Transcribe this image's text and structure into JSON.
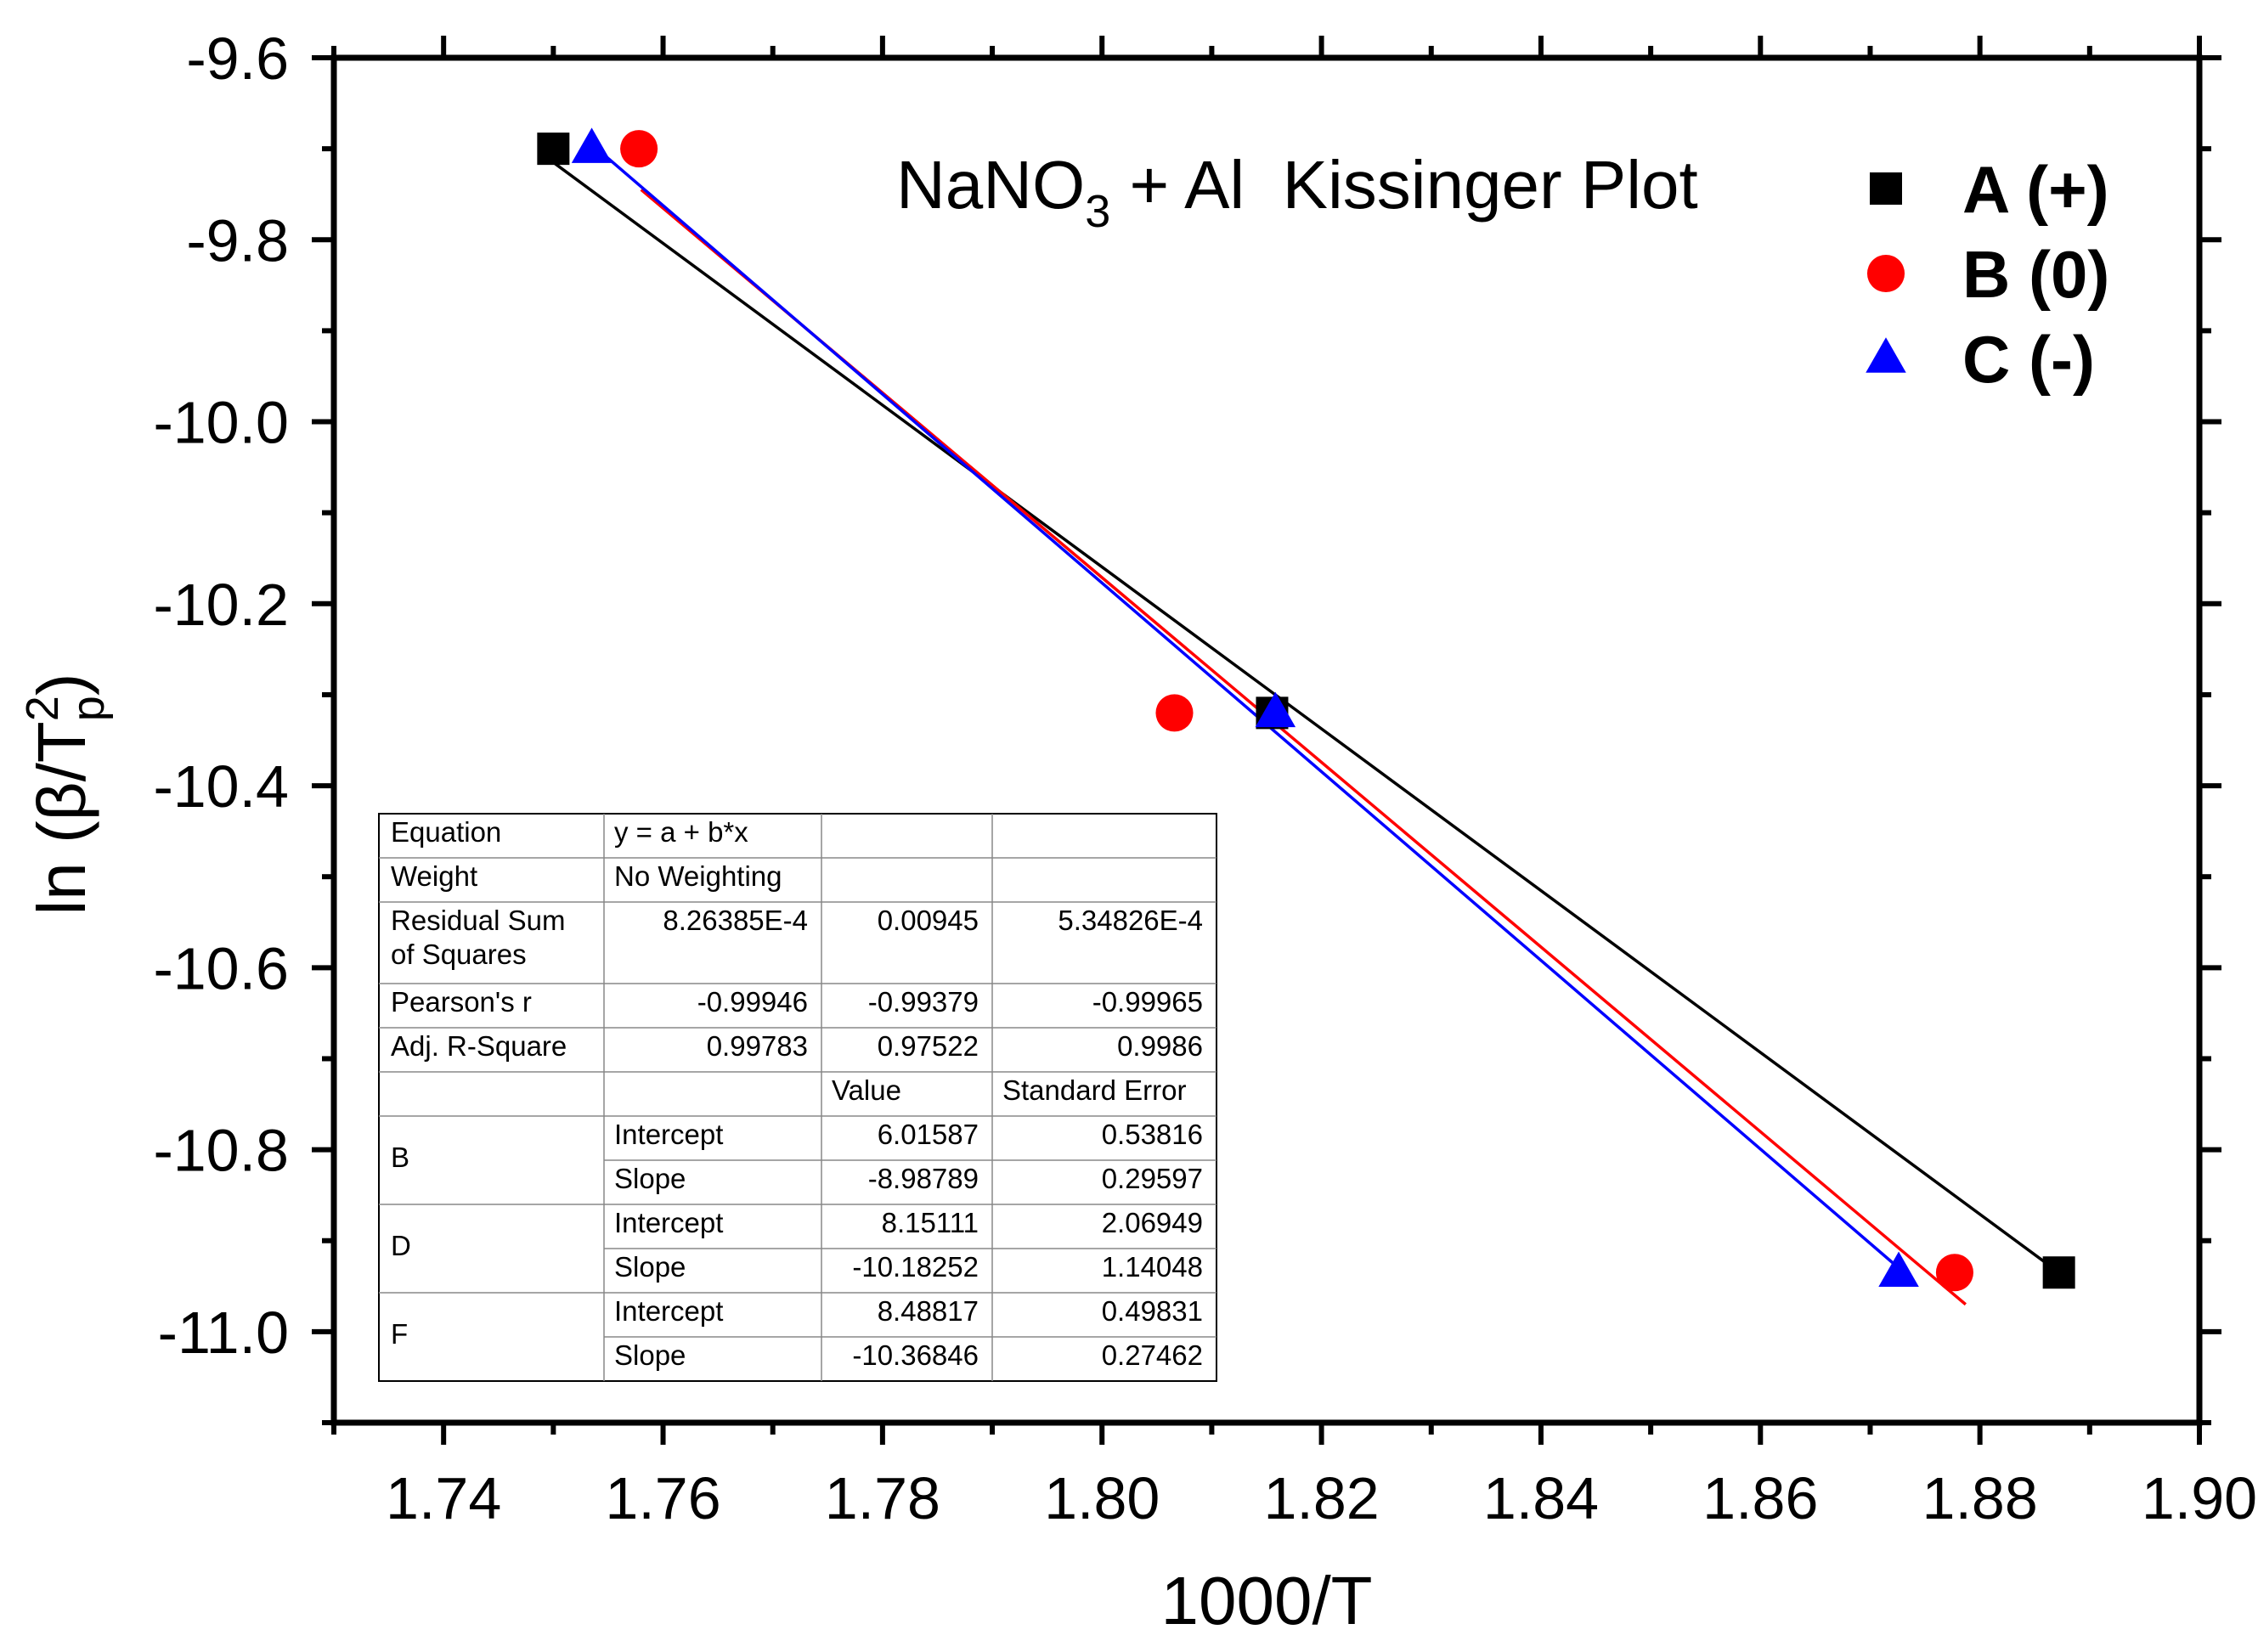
{
  "chart_data": {
    "type": "scatter",
    "title": "NaNO3 + Al  Kissinger Plot",
    "title_parts": {
      "base": "NaNO",
      "sub": "3",
      "rest": " + Al  Kissinger Plot"
    },
    "xlabel": "1000/T",
    "ylabel_parts": {
      "pre": "ln (β/T",
      "sup": "2",
      "sub": "p",
      "post": ")"
    },
    "xlim": [
      1.73,
      1.9
    ],
    "ylim": [
      -11.1,
      -9.6
    ],
    "xticks": [
      1.74,
      1.76,
      1.78,
      1.8,
      1.82,
      1.84,
      1.86,
      1.88,
      1.9
    ],
    "xtick_labels": [
      "1.74",
      "1.76",
      "1.78",
      "1.80",
      "1.82",
      "1.84",
      "1.86",
      "1.88",
      "1.90"
    ],
    "yticks": [
      -9.6,
      -9.8,
      -10.0,
      -10.2,
      -10.4,
      -10.6,
      -10.8,
      -11.0
    ],
    "ytick_labels": [
      "-9.6",
      "-9.8",
      "-10.0",
      "-10.2",
      "-10.4",
      "-10.6",
      "-10.8",
      "-11.0"
    ],
    "legend_position": "top-right",
    "series": [
      {
        "name": "A (+)",
        "marker": "square",
        "color": "#000000",
        "x": [
          1.75,
          1.8155,
          1.8872
        ],
        "y": [
          -9.7,
          -10.32,
          -10.935
        ],
        "fit": {
          "x": [
            1.75,
            1.8872
          ],
          "y": [
            -9.715,
            -10.935
          ]
        }
      },
      {
        "name": "B (0)",
        "marker": "circle",
        "color": "#ff0000",
        "x": [
          1.7578,
          1.8066,
          1.8777
        ],
        "y": [
          -9.7,
          -10.32,
          -10.935
        ],
        "fit": {
          "x": [
            1.758,
            1.8787
          ],
          "y": [
            -9.745,
            -10.97
          ]
        }
      },
      {
        "name": "C (-)",
        "marker": "triangle",
        "color": "#0000ff",
        "x": [
          1.7535,
          1.8158,
          1.8726
        ],
        "y": [
          -9.7,
          -10.32,
          -10.935
        ],
        "fit": {
          "x": [
            1.7535,
            1.8726
          ],
          "y": [
            -9.695,
            -10.93
          ]
        }
      }
    ],
    "fit_table": {
      "rows": [
        [
          "Equation",
          "y = a + b*x",
          "",
          ""
        ],
        [
          "Weight",
          "No Weighting",
          "",
          ""
        ],
        [
          "Residual Sum of Squares",
          "8.26385E-4",
          "0.00945",
          "5.34826E-4"
        ],
        [
          "Pearson's r",
          "-0.99946",
          "-0.99379",
          "-0.99965"
        ],
        [
          "Adj. R-Square",
          "0.99783",
          "0.97522",
          "0.9986"
        ],
        [
          "",
          "",
          "Value",
          "Standard Error"
        ],
        [
          "B",
          "Intercept",
          "6.01587",
          "0.53816"
        ],
        [
          "",
          "Slope",
          "-8.98789",
          "0.29597"
        ],
        [
          "D",
          "Intercept",
          "8.15111",
          "2.06949"
        ],
        [
          "",
          "Slope",
          "-10.18252",
          "1.14048"
        ],
        [
          "F",
          "Intercept",
          "8.48817",
          "0.49831"
        ],
        [
          "",
          "Slope",
          "-10.36846",
          "0.27462"
        ]
      ]
    }
  }
}
